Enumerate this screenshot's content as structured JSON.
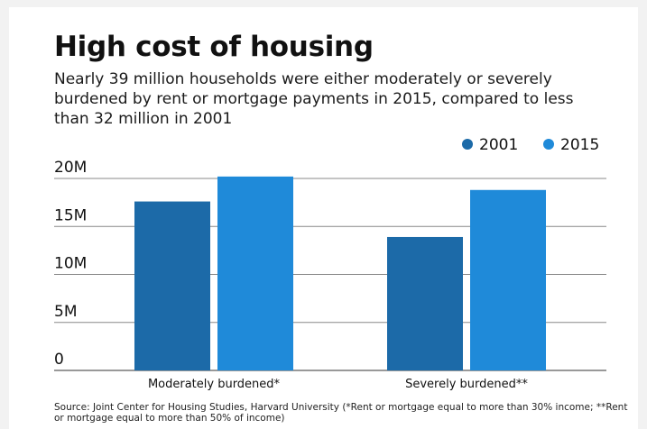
{
  "title": "High cost of housing",
  "subtitle": "Nearly 39 million households were either moderately or severely burdened by rent or mortgage payments in 2015, compared to less than 32 million in 2001",
  "source": "Source: Joint Center for Housing Studies, Harvard University (*Rent or mortgage equal to more than 30% income; **Rent or mortgage equal to more than 50% of income)",
  "colors": {
    "2001": "#1c6aa8",
    "2015": "#1f8ad9"
  },
  "chart_data": {
    "type": "bar",
    "title": "High cost of housing",
    "categories": [
      "Moderately burdened*",
      "Severely burdened**"
    ],
    "series": [
      {
        "name": "2001",
        "values": [
          17.6,
          13.9
        ]
      },
      {
        "name": "2015",
        "values": [
          20.2,
          18.8
        ]
      }
    ],
    "ylim": [
      0,
      20
    ],
    "yticks": [
      {
        "value": 0,
        "label": "0"
      },
      {
        "value": 5,
        "label": "5M"
      },
      {
        "value": 10,
        "label": "10M"
      },
      {
        "value": 15,
        "label": "15M"
      },
      {
        "value": 20,
        "label": "20M"
      }
    ],
    "xlabel": "",
    "ylabel": "",
    "grid": true,
    "legend_position": "top-right"
  }
}
